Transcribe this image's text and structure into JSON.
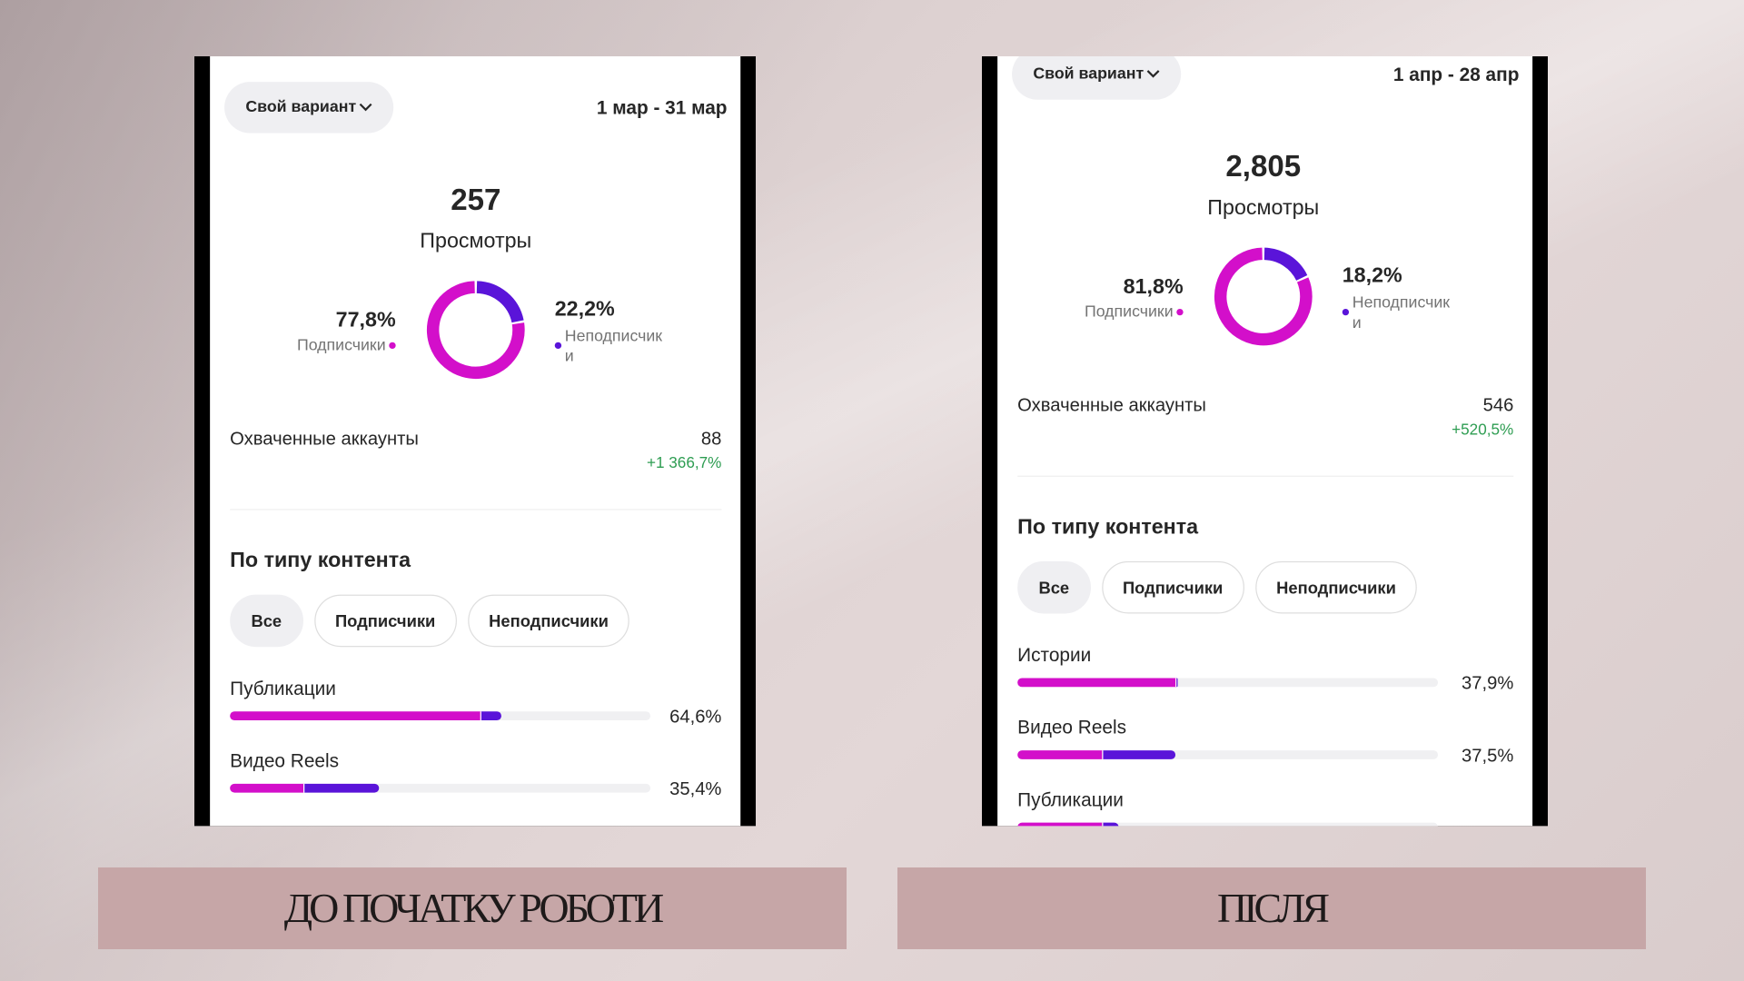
{
  "panels": [
    {
      "period_button": "Свой вариант",
      "date_range": "1 мар - 31 мар",
      "total": "257",
      "total_label": "Просмотры",
      "audience": [
        {
          "name": "Подписчики",
          "value": 77.8,
          "value_label": "77,8%",
          "color": "#d30fca"
        },
        {
          "name": "Неподписчики",
          "value": 22.2,
          "value_label": "22,2%",
          "color": "#5a14d9"
        }
      ],
      "reach": {
        "label": "Охваченные аккаунты",
        "value": "88",
        "change": "+1 366,7%"
      },
      "section_title": "По типу контента",
      "filters": [
        "Все",
        "Подписчики",
        "Неподписчики"
      ],
      "content": [
        {
          "label": "Публикации",
          "segments": [
            59.7,
            4.9
          ],
          "percent": "64,6%"
        },
        {
          "label": "Видео Reels",
          "segments": [
            17.7,
            17.7
          ],
          "percent": "35,4%"
        }
      ],
      "caption": "ДО ПОЧАТКУ РОБОТИ"
    },
    {
      "period_button": "Свой вариант",
      "date_range": "1 апр - 28 апр",
      "total": "2,805",
      "total_label": "Просмотры",
      "audience": [
        {
          "name": "Подписчики",
          "value": 81.8,
          "value_label": "81,8%",
          "color": "#d30fca"
        },
        {
          "name": "Неподписчики",
          "value": 18.2,
          "value_label": "18,2%",
          "color": "#5a14d9"
        }
      ],
      "reach": {
        "label": "Охваченные аккаунты",
        "value": "546",
        "change": "+520,5%"
      },
      "section_title": "По типу контента",
      "filters": [
        "Все",
        "Подписчики",
        "Неподписчики"
      ],
      "content": [
        {
          "label": "Истории",
          "segments": [
            37.7,
            0.2
          ],
          "percent": "37,9%"
        },
        {
          "label": "Видео Reels",
          "segments": [
            20.4,
            17.1
          ],
          "percent": "37,5%"
        },
        {
          "label": "Публикации",
          "segments": [
            20.5,
            3.5
          ]
        }
      ],
      "caption": "ПІСЛЯ"
    }
  ]
}
